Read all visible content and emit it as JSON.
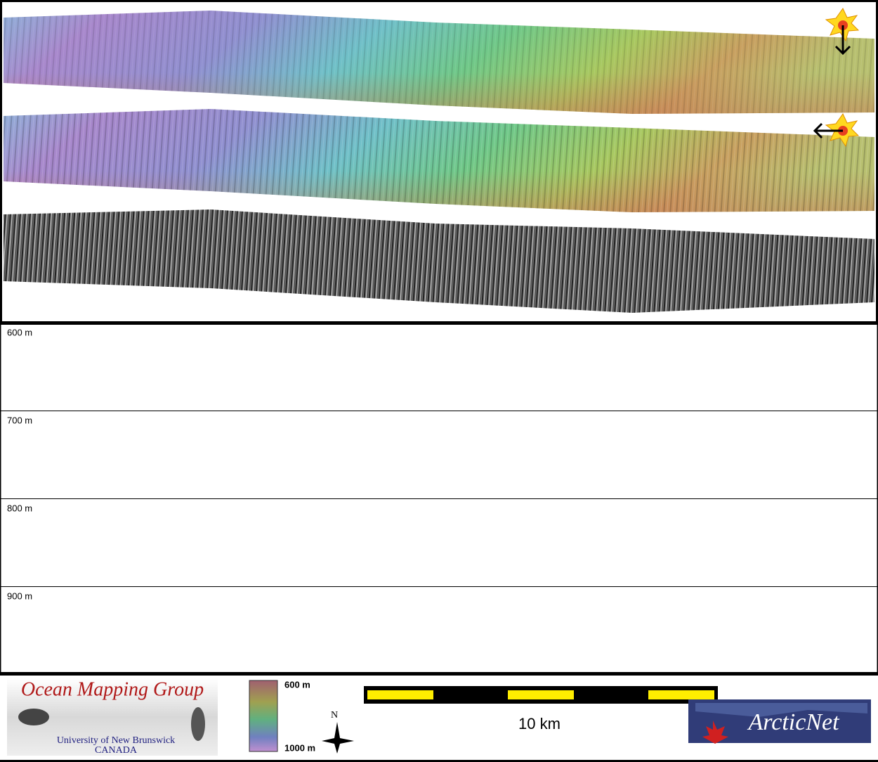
{
  "depth_profile": {
    "labels": [
      "600 m",
      "700 m",
      "800 m",
      "900 m"
    ]
  },
  "footer": {
    "logo": {
      "title": "Ocean Mapping Group",
      "line1": "University of New Brunswick",
      "line2": "CANADA"
    },
    "colorbar": {
      "top": "600 m",
      "bottom": "1000 m"
    },
    "north": "N",
    "scale_bar": "10 km",
    "partner": "ArcticNet"
  }
}
